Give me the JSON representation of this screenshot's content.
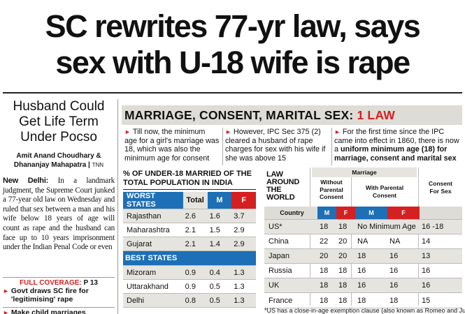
{
  "headline": {
    "line1": "SC rewrites 77-yr law, says",
    "line2": "sex with U-18 wife is rape"
  },
  "sidebar": {
    "subhead": [
      "Husband Could",
      "Get Life Term",
      "Under Pocso"
    ],
    "byline_line1": "Amit Anand Choudhary &",
    "byline_line2": "Dhananjay Mahapatra",
    "agency": "TNN",
    "dateline": "New Delhi:",
    "body": "In a landmark judgment, the Supreme Court junked a 77-year old law on Wednesday and ruled that sex between a man and his wife below 18 years of age will count as rape and the husband can face up to 10 years imprisonment under the Indian Penal Code or even",
    "full_coverage_label": "FULL COVERAGE:",
    "full_coverage_page": "P 13",
    "bullets": [
      "Govt draws SC fire for 'legitimising' rape",
      "Make child marriages"
    ]
  },
  "section": {
    "title": "MARRIAGE, CONSENT, MARITAL SEX:",
    "title_accent": "1 LAW"
  },
  "facts": [
    {
      "pre": "Till now, the minimum age for a girl's marriage was 18, which was also the minimum age for consent",
      "bold": "",
      "post": ""
    },
    {
      "pre": "However, IPC Sec 375 (2) cleared a husband of rape charges for sex with his wife if she was above 15",
      "bold": "",
      "post": ""
    },
    {
      "pre": "For the first time since the IPC came into effect in 1860, there is now a ",
      "bold": "uniform minimum age (18) for marriage, consent and marital sex",
      "post": ""
    }
  ],
  "state_table": {
    "title": "% OF UNDER-18 MARRIED OF THE TOTAL POPULATION IN INDIA",
    "worst_label": "WORST STATES",
    "best_label": "BEST STATES",
    "col_total": "Total",
    "col_m": "M",
    "col_f": "F",
    "worst": [
      {
        "state": "Rajasthan",
        "total": "2.6",
        "m": "1.6",
        "f": "3.7"
      },
      {
        "state": "Maharashtra",
        "total": "2.1",
        "m": "1.5",
        "f": "2.9"
      },
      {
        "state": "Gujarat",
        "total": "2.1",
        "m": "1.4",
        "f": "2.9"
      }
    ],
    "best": [
      {
        "state": "Mizoram",
        "total": "0.9",
        "m": "0.4",
        "f": "1.3"
      },
      {
        "state": "Uttarakhand",
        "total": "0.9",
        "m": "0.5",
        "f": "1.3"
      },
      {
        "state": "Delhi",
        "total": "0.8",
        "m": "0.5",
        "f": "1.3"
      }
    ]
  },
  "law_table": {
    "title": [
      "LAW",
      "AROUND",
      "THE",
      "WORLD"
    ],
    "marriage_label": "Marriage",
    "without_consent": [
      "Without",
      "Parental",
      "Consent"
    ],
    "with_consent": [
      "With Parental",
      "Consent"
    ],
    "consent_sex": [
      "Consent",
      "For Sex"
    ],
    "col_country": "Country",
    "col_m": "M",
    "col_f": "F",
    "rows": [
      {
        "country": "US*",
        "wm": "18",
        "wf": "18",
        "pm": "No Minimum Age",
        "pf": "",
        "sex": "16 -18"
      },
      {
        "country": "China",
        "wm": "22",
        "wf": "20",
        "pm": "NA",
        "pf": "NA",
        "sex": "14"
      },
      {
        "country": "Japan",
        "wm": "20",
        "wf": "20",
        "pm": "18",
        "pf": "16",
        "sex": "13"
      },
      {
        "country": "Russia",
        "wm": "18",
        "wf": "18",
        "pm": "16",
        "pf": "16",
        "sex": "16"
      },
      {
        "country": "UK",
        "wm": "18",
        "wf": "18",
        "pm": "16",
        "pf": "16",
        "sex": "16"
      },
      {
        "country": "France",
        "wm": "18",
        "wf": "18",
        "pm": "18",
        "pf": "18",
        "sex": "15"
      }
    ],
    "footnote": "*US has a close-in-age exemption clause (also known as Romeo and Juliet"
  },
  "colors": {
    "accent_red": "#d42020",
    "accent_blue": "#1d6fb6",
    "shade": "#e5e4df"
  }
}
